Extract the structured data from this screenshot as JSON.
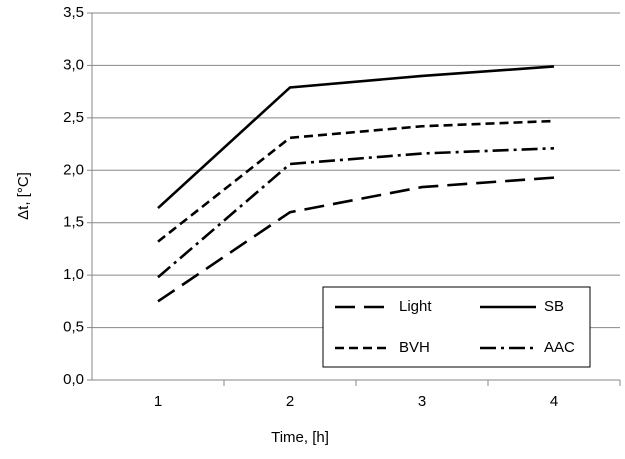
{
  "chart_data": {
    "type": "line",
    "x_label": "Time, [h]",
    "y_label": "Δt, [°C]",
    "categories": [
      "1",
      "2",
      "3",
      "4"
    ],
    "series": [
      {
        "name": "Light",
        "color": "#000000",
        "dash": "20,9",
        "values": [
          0.75,
          1.6,
          1.84,
          1.93
        ]
      },
      {
        "name": "SB",
        "color": "#000000",
        "dash": "none",
        "values": [
          1.64,
          2.79,
          2.9,
          2.99
        ]
      },
      {
        "name": "BVH",
        "color": "#000000",
        "dash": "9,5",
        "values": [
          1.32,
          2.31,
          2.42,
          2.47
        ]
      },
      {
        "name": "AAC",
        "color": "#000000",
        "dash": "16,5,3,5",
        "values": [
          0.98,
          2.06,
          2.16,
          2.21
        ]
      }
    ],
    "ylim": [
      0,
      3.5
    ],
    "yticks": [
      {
        "value": 0,
        "label": "0,0"
      },
      {
        "value": 0.5,
        "label": "0,5"
      },
      {
        "value": 1,
        "label": "1,0"
      },
      {
        "value": 1.5,
        "label": "1,5"
      },
      {
        "value": 2,
        "label": "2,0"
      },
      {
        "value": 2.5,
        "label": "2,5"
      },
      {
        "value": 3,
        "label": "3,0"
      },
      {
        "value": 3.5,
        "label": "3,5"
      }
    ],
    "grid": true,
    "legend": "lower right"
  }
}
